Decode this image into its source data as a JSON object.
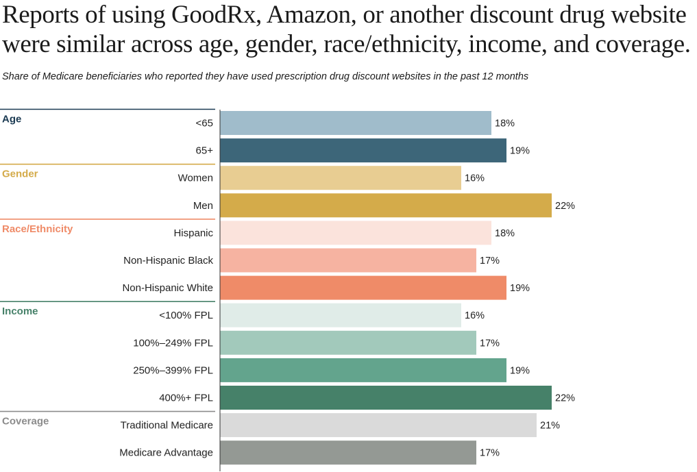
{
  "header": {
    "title": "Reports of using GoodRx, Amazon, or another discount drug website were similar across age, gender, race/ethnicity, income, and coverage.",
    "subtitle": "Share of Medicare beneficiaries who reported they have used prescription drug discount websites in the past 12 months"
  },
  "chart_data": {
    "type": "bar",
    "orientation": "horizontal",
    "title": "Reports of using GoodRx, Amazon, or another discount drug website were similar across age, gender, race/ethnicity, income, and coverage.",
    "subtitle": "Share of Medicare beneficiaries who reported they have used prescription drug discount websites in the past 12 months",
    "xlabel": "",
    "ylabel": "",
    "xlim": [
      0,
      22
    ],
    "unit": "%",
    "grid": false,
    "groups": [
      {
        "name": "Age",
        "color": "#1b3a52",
        "bar_indices": [
          0,
          1
        ]
      },
      {
        "name": "Gender",
        "color": "#d4ab4a",
        "bar_indices": [
          2,
          3
        ]
      },
      {
        "name": "Race/Ethnicity",
        "color": "#ef8b68",
        "bar_indices": [
          4,
          5,
          6
        ]
      },
      {
        "name": "Income",
        "color": "#468169",
        "bar_indices": [
          7,
          8,
          9,
          10
        ]
      },
      {
        "name": "Coverage",
        "color": "#8c8c8c",
        "bar_indices": [
          11,
          12
        ]
      }
    ],
    "categories": [
      "<65",
      "65+",
      "Women",
      "Men",
      "Hispanic",
      "Non-Hispanic Black",
      "Non-Hispanic White",
      "<100% FPL",
      "100%–249% FPL",
      "250%–399% FPL",
      "400%+ FPL",
      "Traditional Medicare",
      "Medicare Advantage"
    ],
    "values": [
      18,
      19,
      16,
      22,
      18,
      17,
      19,
      16,
      17,
      19,
      22,
      21,
      17
    ],
    "value_labels": [
      "18%",
      "19%",
      "16%",
      "22%",
      "18%",
      "17%",
      "19%",
      "16%",
      "17%",
      "19%",
      "22%",
      "21%",
      "17%"
    ],
    "bar_colors": [
      "#a0bccb",
      "#3d6679",
      "#e8cd92",
      "#d4ab4a",
      "#fbe3dc",
      "#f6b3a1",
      "#ef8b68",
      "#e0ece8",
      "#a2c9bb",
      "#63a48d",
      "#468169",
      "#dadada",
      "#949994"
    ]
  }
}
